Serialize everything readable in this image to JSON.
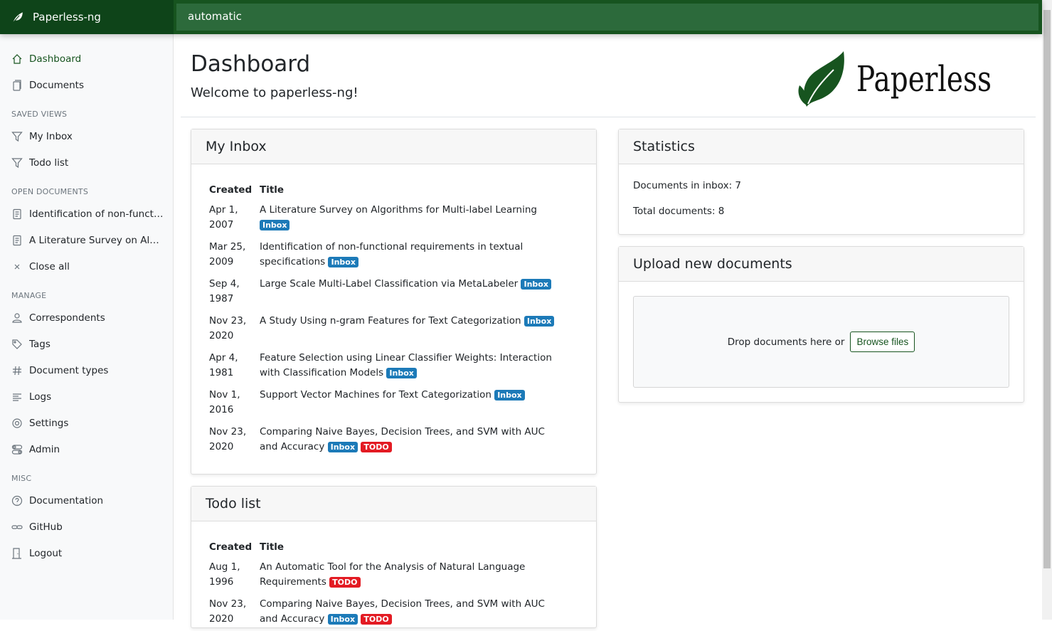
{
  "app": {
    "name": "Paperless-ng",
    "search_value": "automatic",
    "logo_text": "Paperless"
  },
  "colors": {
    "header": "#17541f",
    "inbox": "#1c7ab8",
    "todo": "#e31b23"
  },
  "sidebar": {
    "main": [
      {
        "label": "Dashboard",
        "icon": "house-icon",
        "active": true
      },
      {
        "label": "Documents",
        "icon": "files-icon"
      }
    ],
    "saved_views_title": "SAVED VIEWS",
    "saved_views": [
      {
        "label": "My Inbox",
        "icon": "funnel-icon"
      },
      {
        "label": "Todo list",
        "icon": "funnel-icon"
      }
    ],
    "open_documents_title": "OPEN DOCUMENTS",
    "open_documents": [
      {
        "label": "Identification of non-functional requirements in textual specifications",
        "icon": "file-text-icon"
      },
      {
        "label": "A Literature Survey on Algorithms for Multi-label Learning",
        "icon": "file-text-icon"
      },
      {
        "label": "Close all",
        "icon": "x-icon"
      }
    ],
    "manage_title": "MANAGE",
    "manage": [
      {
        "label": "Correspondents",
        "icon": "person-icon"
      },
      {
        "label": "Tags",
        "icon": "tags-icon"
      },
      {
        "label": "Document types",
        "icon": "hash-icon"
      },
      {
        "label": "Logs",
        "icon": "text-left-icon"
      },
      {
        "label": "Settings",
        "icon": "gear-icon"
      },
      {
        "label": "Admin",
        "icon": "toggles-icon"
      }
    ],
    "misc_title": "MISC",
    "misc": [
      {
        "label": "Documentation",
        "icon": "question-circle-icon"
      },
      {
        "label": "GitHub",
        "icon": "link-icon"
      },
      {
        "label": "Logout",
        "icon": "door-icon"
      }
    ]
  },
  "page": {
    "title": "Dashboard",
    "subtitle": "Welcome to paperless-ng!"
  },
  "inbox": {
    "title": "My Inbox",
    "col_created": "Created",
    "col_title": "Title",
    "rows": [
      {
        "created": "Apr 1, 2007",
        "title": "A Literature Survey on Algorithms for Multi-label Learning",
        "tags": [
          "Inbox"
        ]
      },
      {
        "created": "Mar 25, 2009",
        "title": "Identification of non-functional requirements in textual specifications",
        "tags": [
          "Inbox"
        ]
      },
      {
        "created": "Sep 4, 1987",
        "title": "Large Scale Multi-Label Classification via MetaLabeler",
        "tags": [
          "Inbox"
        ]
      },
      {
        "created": "Nov 23, 2020",
        "title": "A Study Using n-gram Features for Text Categorization",
        "tags": [
          "Inbox"
        ]
      },
      {
        "created": "Apr 4, 1981",
        "title": "Feature Selection using Linear Classifier Weights: Interaction with Classification Models",
        "tags": [
          "Inbox"
        ]
      },
      {
        "created": "Nov 1, 2016",
        "title": "Support Vector Machines for Text Categorization",
        "tags": [
          "Inbox"
        ]
      },
      {
        "created": "Nov 23, 2020",
        "title": "Comparing Naive Bayes, Decision Trees, and SVM with AUC and Accuracy",
        "tags": [
          "Inbox",
          "TODO"
        ]
      }
    ]
  },
  "todo": {
    "title": "Todo list",
    "col_created": "Created",
    "col_title": "Title",
    "rows": [
      {
        "created": "Aug 1, 1996",
        "title": "An Automatic Tool for the Analysis of Natural Language Requirements",
        "tags": [
          "TODO"
        ]
      },
      {
        "created": "Nov 23, 2020",
        "title": "Comparing Naive Bayes, Decision Trees, and SVM with AUC and Accuracy",
        "tags": [
          "Inbox",
          "TODO"
        ]
      }
    ]
  },
  "statistics": {
    "title": "Statistics",
    "inbox_label": "Documents in inbox: 7",
    "total_label": "Total documents: 8"
  },
  "upload": {
    "title": "Upload new documents",
    "drop_text": "Drop documents here or",
    "browse_label": "Browse files"
  }
}
